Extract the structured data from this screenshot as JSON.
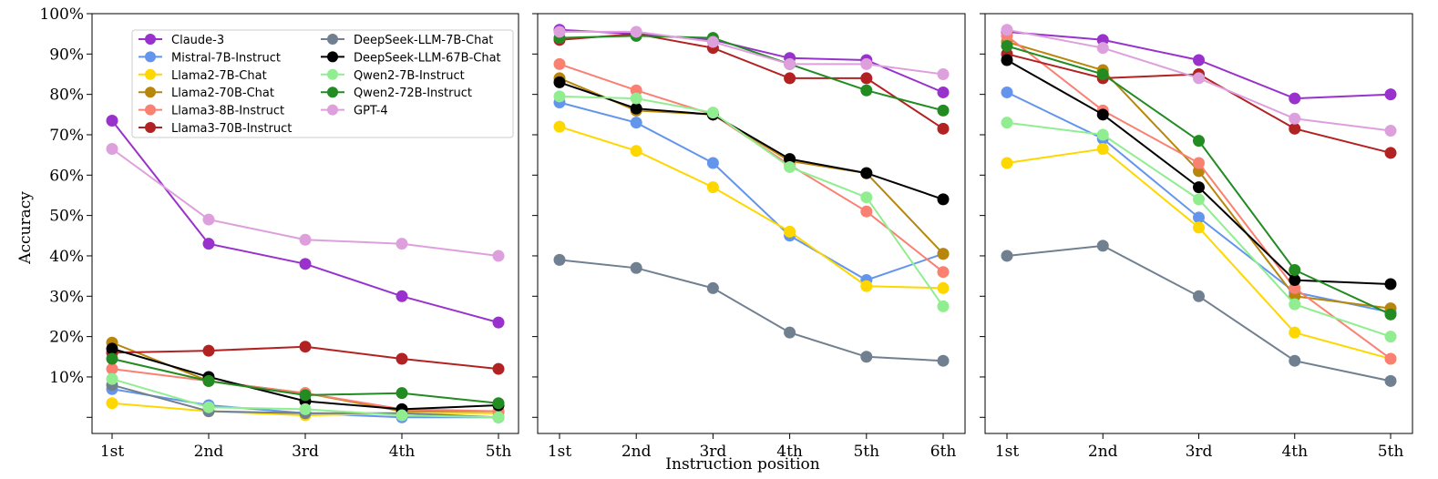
{
  "chart_data": {
    "type": "line",
    "ylabel": "Accuracy",
    "xlabel": "Instruction position",
    "y_ticks": [
      "10%",
      "20%",
      "30%",
      "40%",
      "50%",
      "60%",
      "70%",
      "80%",
      "90%",
      "100%"
    ],
    "ylim": [
      -4,
      100
    ],
    "series_meta": [
      {
        "name": "Claude-3",
        "color": "#9932cc"
      },
      {
        "name": "Mistral-7B-Instruct",
        "color": "#6495ed"
      },
      {
        "name": "Llama2-7B-Chat",
        "color": "#ffd700"
      },
      {
        "name": "Llama2-70B-Chat",
        "color": "#b8860b"
      },
      {
        "name": "Llama3-8B-Instruct",
        "color": "#fa8072"
      },
      {
        "name": "Llama3-70B-Instruct",
        "color": "#b22222"
      },
      {
        "name": "DeepSeek-LLM-7B-Chat",
        "color": "#708090"
      },
      {
        "name": "DeepSeek-LLM-67B-Chat",
        "color": "#000000"
      },
      {
        "name": "Qwen2-7B-Instruct",
        "color": "#90ee90"
      },
      {
        "name": "Qwen2-72B-Instruct",
        "color": "#228b22"
      },
      {
        "name": "GPT-4",
        "color": "#dda0dd"
      }
    ],
    "panels": [
      {
        "categories": [
          "1st",
          "2nd",
          "3rd",
          "4th",
          "5th"
        ],
        "series": [
          {
            "name": "Claude-3",
            "values": [
              73.5,
              43,
              38,
              30,
              23.5
            ]
          },
          {
            "name": "Mistral-7B-Instruct",
            "values": [
              7,
              3,
              1,
              0,
              0
            ]
          },
          {
            "name": "Llama2-7B-Chat",
            "values": [
              3.5,
              1.5,
              0.5,
              1,
              1
            ]
          },
          {
            "name": "Llama2-70B-Chat",
            "values": [
              18.5,
              9,
              6,
              1.5,
              1.5
            ]
          },
          {
            "name": "Llama3-8B-Instruct",
            "values": [
              12,
              9,
              6,
              2,
              1.5
            ]
          },
          {
            "name": "Llama3-70B-Instruct",
            "values": [
              16,
              16.5,
              17.5,
              14.5,
              12
            ]
          },
          {
            "name": "DeepSeek-LLM-7B-Chat",
            "values": [
              8,
              1.5,
              1,
              1,
              0
            ]
          },
          {
            "name": "DeepSeek-LLM-67B-Chat",
            "values": [
              17,
              10,
              4,
              2,
              3
            ]
          },
          {
            "name": "Qwen2-7B-Instruct",
            "values": [
              9.5,
              2.5,
              2,
              0.5,
              0
            ]
          },
          {
            "name": "Qwen2-72B-Instruct",
            "values": [
              14.5,
              9,
              5.5,
              6,
              3.5
            ]
          },
          {
            "name": "GPT-4",
            "values": [
              66.5,
              49,
              44,
              43,
              40
            ]
          }
        ]
      },
      {
        "categories": [
          "1st",
          "2nd",
          "3rd",
          "4th",
          "5th",
          "6th"
        ],
        "series": [
          {
            "name": "Claude-3",
            "values": [
              96,
              95,
              93.5,
              89,
              88.5,
              80.5
            ]
          },
          {
            "name": "Mistral-7B-Instruct",
            "values": [
              78,
              73,
              63,
              45,
              34,
              40.5
            ]
          },
          {
            "name": "Llama2-7B-Chat",
            "values": [
              72,
              66,
              57,
              46,
              32.5,
              32
            ]
          },
          {
            "name": "Llama2-70B-Chat",
            "values": [
              84,
              76,
              75,
              63.5,
              60.5,
              40.5
            ]
          },
          {
            "name": "Llama3-8B-Instruct",
            "values": [
              87.5,
              81,
              75,
              62.5,
              51,
              36
            ]
          },
          {
            "name": "Llama3-70B-Instruct",
            "values": [
              93.5,
              95,
              91.5,
              84,
              84,
              71.5
            ]
          },
          {
            "name": "DeepSeek-LLM-7B-Chat",
            "values": [
              39,
              37,
              32,
              21,
              15,
              14
            ]
          },
          {
            "name": "DeepSeek-LLM-67B-Chat",
            "values": [
              83,
              76.5,
              75,
              64,
              60.5,
              54
            ]
          },
          {
            "name": "Qwen2-7B-Instruct",
            "values": [
              79.5,
              79,
              75.5,
              62,
              54.5,
              27.5
            ]
          },
          {
            "name": "Qwen2-72B-Instruct",
            "values": [
              94,
              94.5,
              94,
              87.5,
              81,
              76
            ]
          },
          {
            "name": "GPT-4",
            "values": [
              95.5,
              95.5,
              93,
              87.5,
              87.5,
              85
            ]
          }
        ]
      },
      {
        "categories": [
          "1st",
          "2nd",
          "3rd",
          "4th",
          "5th"
        ],
        "series": [
          {
            "name": "Claude-3",
            "values": [
              95.5,
              93.5,
              88.5,
              79,
              80
            ]
          },
          {
            "name": "Mistral-7B-Instruct",
            "values": [
              80.5,
              69,
              49.5,
              31,
              26
            ]
          },
          {
            "name": "Llama2-7B-Chat",
            "values": [
              63,
              66.5,
              47,
              21,
              14.5
            ]
          },
          {
            "name": "Llama2-70B-Chat",
            "values": [
              93,
              86,
              61,
              30,
              27
            ]
          },
          {
            "name": "Llama3-8B-Instruct",
            "values": [
              94.5,
              76,
              63,
              32,
              14.5
            ]
          },
          {
            "name": "Llama3-70B-Instruct",
            "values": [
              90,
              84,
              85,
              71.5,
              65.5
            ]
          },
          {
            "name": "DeepSeek-LLM-7B-Chat",
            "values": [
              40,
              42.5,
              30,
              14,
              9
            ]
          },
          {
            "name": "DeepSeek-LLM-67B-Chat",
            "values": [
              88.5,
              75,
              57,
              34,
              33
            ]
          },
          {
            "name": "Qwen2-7B-Instruct",
            "values": [
              73,
              70,
              54,
              28,
              20
            ]
          },
          {
            "name": "Qwen2-72B-Instruct",
            "values": [
              92,
              85,
              68.5,
              36.5,
              25.5
            ]
          },
          {
            "name": "GPT-4",
            "values": [
              96,
              91.5,
              84,
              74,
              71
            ]
          }
        ]
      }
    ]
  }
}
